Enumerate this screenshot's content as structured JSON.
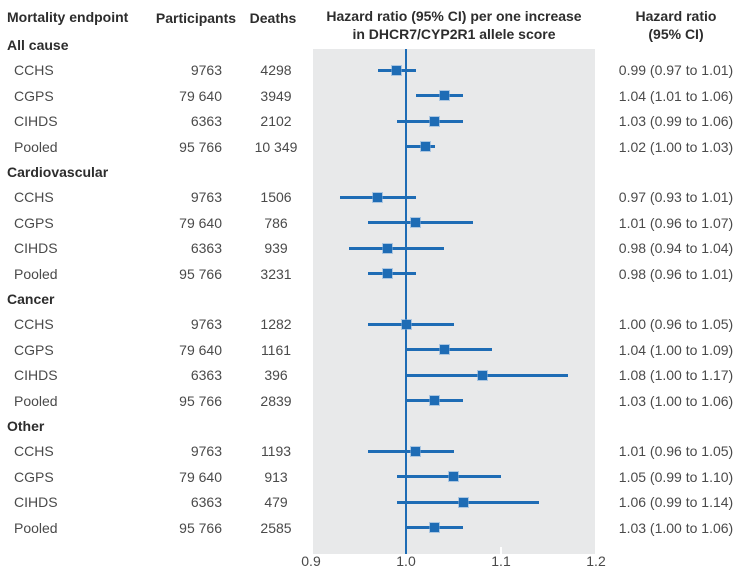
{
  "header": {
    "endpoint": "Mortality endpoint",
    "participants": "Participants",
    "deaths": "Deaths",
    "plot_title_line1": "Hazard ratio (95% CI) per one increase",
    "plot_title_line2": "in DHCR7/CYP2R1 allele score",
    "hr_col_line1": "Hazard ratio",
    "hr_col_line2": "(95% CI)"
  },
  "chart_data": {
    "type": "forest",
    "x_axis": {
      "range": [
        0.9,
        1.2
      ],
      "reference_line": 1.0,
      "ticks": [
        {
          "value": 0.9,
          "label": "0.9"
        },
        {
          "value": 1.0,
          "label": "1.0"
        },
        {
          "value": 1.1,
          "label": "1.1"
        },
        {
          "value": 1.2,
          "label": "1.2"
        }
      ]
    },
    "colors": {
      "marker": "#1e6cb5",
      "plot_bg": "#e8e9ea"
    },
    "sections": [
      {
        "label": "All cause",
        "rows": [
          {
            "study": "CCHS",
            "participants": "9763",
            "deaths": "4298",
            "hr": 0.99,
            "lo": 0.97,
            "hi": 1.01,
            "hr_text": "0.99 (0.97 to 1.01)"
          },
          {
            "study": "CGPS",
            "participants": "79 640",
            "deaths": "3949",
            "hr": 1.04,
            "lo": 1.01,
            "hi": 1.06,
            "hr_text": "1.04 (1.01 to 1.06)"
          },
          {
            "study": "CIHDS",
            "participants": "6363",
            "deaths": "2102",
            "hr": 1.03,
            "lo": 0.99,
            "hi": 1.06,
            "hr_text": "1.03 (0.99 to 1.06)"
          },
          {
            "study": "Pooled",
            "participants": "95 766",
            "deaths": "10 349",
            "hr": 1.02,
            "lo": 1.0,
            "hi": 1.03,
            "hr_text": "1.02 (1.00 to 1.03)"
          }
        ]
      },
      {
        "label": "Cardiovascular",
        "rows": [
          {
            "study": "CCHS",
            "participants": "9763",
            "deaths": "1506",
            "hr": 0.97,
            "lo": 0.93,
            "hi": 1.01,
            "hr_text": "0.97 (0.93 to 1.01)"
          },
          {
            "study": "CGPS",
            "participants": "79 640",
            "deaths": "786",
            "hr": 1.01,
            "lo": 0.96,
            "hi": 1.07,
            "hr_text": "1.01 (0.96 to 1.07)"
          },
          {
            "study": "CIHDS",
            "participants": "6363",
            "deaths": "939",
            "hr": 0.98,
            "lo": 0.94,
            "hi": 1.04,
            "hr_text": "0.98 (0.94 to 1.04)"
          },
          {
            "study": "Pooled",
            "participants": "95 766",
            "deaths": "3231",
            "hr": 0.98,
            "lo": 0.96,
            "hi": 1.01,
            "hr_text": "0.98 (0.96 to 1.01)"
          }
        ]
      },
      {
        "label": "Cancer",
        "rows": [
          {
            "study": "CCHS",
            "participants": "9763",
            "deaths": "1282",
            "hr": 1.0,
            "lo": 0.96,
            "hi": 1.05,
            "hr_text": "1.00 (0.96 to 1.05)"
          },
          {
            "study": "CGPS",
            "participants": "79 640",
            "deaths": "1161",
            "hr": 1.04,
            "lo": 1.0,
            "hi": 1.09,
            "hr_text": "1.04 (1.00 to 1.09)"
          },
          {
            "study": "CIHDS",
            "participants": "6363",
            "deaths": "396",
            "hr": 1.08,
            "lo": 1.0,
            "hi": 1.17,
            "hr_text": "1.08 (1.00 to 1.17)"
          },
          {
            "study": "Pooled",
            "participants": "95 766",
            "deaths": "2839",
            "hr": 1.03,
            "lo": 1.0,
            "hi": 1.06,
            "hr_text": "1.03 (1.00 to 1.06)"
          }
        ]
      },
      {
        "label": "Other",
        "rows": [
          {
            "study": "CCHS",
            "participants": "9763",
            "deaths": "1193",
            "hr": 1.01,
            "lo": 0.96,
            "hi": 1.05,
            "hr_text": "1.01 (0.96 to 1.05)"
          },
          {
            "study": "CGPS",
            "participants": "79 640",
            "deaths": "913",
            "hr": 1.05,
            "lo": 0.99,
            "hi": 1.1,
            "hr_text": "1.05 (0.99 to 1.10)"
          },
          {
            "study": "CIHDS",
            "participants": "6363",
            "deaths": "479",
            "hr": 1.06,
            "lo": 0.99,
            "hi": 1.14,
            "hr_text": "1.06 (0.99 to 1.14)"
          },
          {
            "study": "Pooled",
            "participants": "95 766",
            "deaths": "2585",
            "hr": 1.03,
            "lo": 1.0,
            "hi": 1.06,
            "hr_text": "1.03 (1.00 to 1.06)"
          }
        ]
      }
    ]
  }
}
